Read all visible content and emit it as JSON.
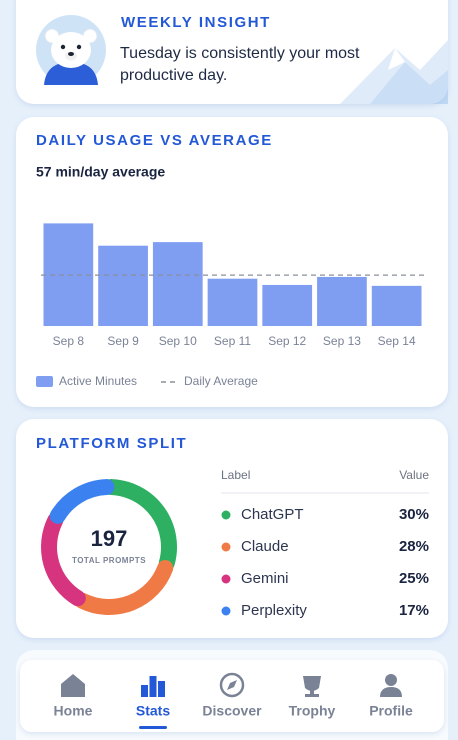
{
  "insight": {
    "title": "WEEKLY INSIGHT",
    "text": "Tuesday is consistently your most productive day."
  },
  "chart_data": [
    {
      "type": "bar",
      "title": "DAILY USAGE VS AVERAGE",
      "subtitle": "57 min/day average",
      "categories": [
        "Sep 8",
        "Sep 9",
        "Sep 10",
        "Sep 11",
        "Sep 12",
        "Sep 13",
        "Sep 14"
      ],
      "series": [
        {
          "name": "Active Minutes",
          "color": "#7f9ef2",
          "values": [
            115,
            90,
            94,
            53,
            46,
            55,
            45
          ]
        }
      ],
      "reference_line": {
        "name": "Daily Average",
        "value": 57,
        "color": "#8a8f9a"
      },
      "ylim": [
        0,
        130
      ],
      "legend": "bottom-left"
    },
    {
      "type": "donut",
      "title": "PLATFORM SPLIT",
      "center_value": 197,
      "center_label": "TOTAL PROMPTS",
      "table_headers": [
        "Label",
        "Value"
      ],
      "categories": [
        "ChatGPT",
        "Claude",
        "Gemini",
        "Perplexity"
      ],
      "values": [
        30,
        28,
        25,
        17
      ],
      "value_labels": [
        "30%",
        "28%",
        "25%",
        "17%"
      ],
      "colors": [
        "#2eb062",
        "#f07a45",
        "#d6347f",
        "#3b82f0"
      ]
    }
  ],
  "nav": {
    "items": [
      "Home",
      "Stats",
      "Discover",
      "Trophy",
      "Profile"
    ],
    "active": 1
  }
}
